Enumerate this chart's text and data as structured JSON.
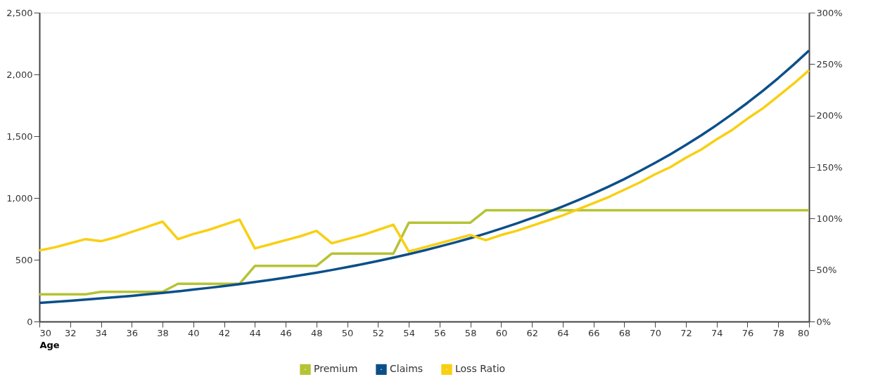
{
  "chart_data": {
    "type": "line",
    "xlabel": "Age",
    "x": [
      30,
      31,
      32,
      33,
      34,
      35,
      36,
      37,
      38,
      39,
      40,
      41,
      42,
      43,
      44,
      45,
      46,
      47,
      48,
      49,
      50,
      51,
      52,
      53,
      54,
      55,
      56,
      57,
      58,
      59,
      60,
      61,
      62,
      63,
      64,
      65,
      66,
      67,
      68,
      69,
      70,
      71,
      72,
      73,
      74,
      75,
      76,
      77,
      78,
      79,
      80
    ],
    "series": [
      {
        "name": "Premium",
        "color": "#b5c334",
        "values": [
          220,
          220,
          220,
          220,
          240,
          240,
          240,
          240,
          240,
          305,
          305,
          305,
          305,
          305,
          450,
          450,
          450,
          450,
          450,
          550,
          550,
          550,
          550,
          550,
          800,
          800,
          800,
          800,
          800,
          900,
          900,
          900,
          900,
          900,
          900,
          900,
          900,
          900,
          900,
          900,
          900,
          900,
          900,
          900,
          900,
          900,
          900,
          900,
          900,
          900,
          900
        ]
      },
      {
        "name": "Claims",
        "color": "#0b4f8a",
        "values": [
          151,
          159,
          168,
          177,
          187,
          197,
          208,
          220,
          232,
          244,
          258,
          272,
          287,
          303,
          319,
          337,
          355,
          375,
          395,
          417,
          440,
          464,
          490,
          517,
          545,
          575,
          607,
          640,
          675,
          712,
          752,
          793,
          837,
          883,
          931,
          982,
          1036,
          1093,
          1153,
          1217,
          1284,
          1354,
          1429,
          1507,
          1590,
          1678,
          1770,
          1867,
          1970,
          2079,
          2193
        ]
      },
      {
        "name": "Loss Ratio",
        "color": "#f9cf12",
        "axis": "y2",
        "values": [
          69,
          72,
          76,
          80,
          78,
          82,
          87,
          92,
          97,
          80,
          85,
          89,
          94,
          99,
          71,
          75,
          79,
          83,
          88,
          76,
          80,
          84,
          89,
          94,
          68,
          72,
          76,
          80,
          84,
          79,
          84,
          88,
          93,
          98,
          103,
          109,
          115,
          121,
          128,
          135,
          143,
          150,
          159,
          167,
          177,
          186,
          197,
          207,
          219,
          231,
          244
        ]
      }
    ],
    "xlim": [
      30,
      80
    ],
    "xticks": [
      30,
      32,
      34,
      36,
      38,
      40,
      42,
      44,
      46,
      48,
      50,
      52,
      54,
      56,
      58,
      60,
      62,
      64,
      66,
      68,
      70,
      72,
      74,
      76,
      78,
      80
    ],
    "ylim": [
      0,
      2500
    ],
    "yticks": [
      0,
      500,
      {
        "value": 1000,
        "label": "1,000"
      },
      {
        "value": 1500,
        "label": "1,500"
      },
      {
        "value": 2000,
        "label": "2,000"
      },
      {
        "value": 2500,
        "label": "2,500"
      }
    ],
    "y2lim": [
      0,
      300
    ],
    "y2ticks": [
      {
        "value": 0,
        "label": "0%"
      },
      {
        "value": 50,
        "label": "50%"
      },
      {
        "value": 100,
        "label": "100%"
      },
      {
        "value": 150,
        "label": "150%"
      },
      {
        "value": 200,
        "label": "200%"
      },
      {
        "value": 250,
        "label": "250%"
      },
      {
        "value": 300,
        "label": "300%"
      }
    ],
    "grid": false,
    "legend": "bottom",
    "marker": "none",
    "line_style": "solid"
  }
}
